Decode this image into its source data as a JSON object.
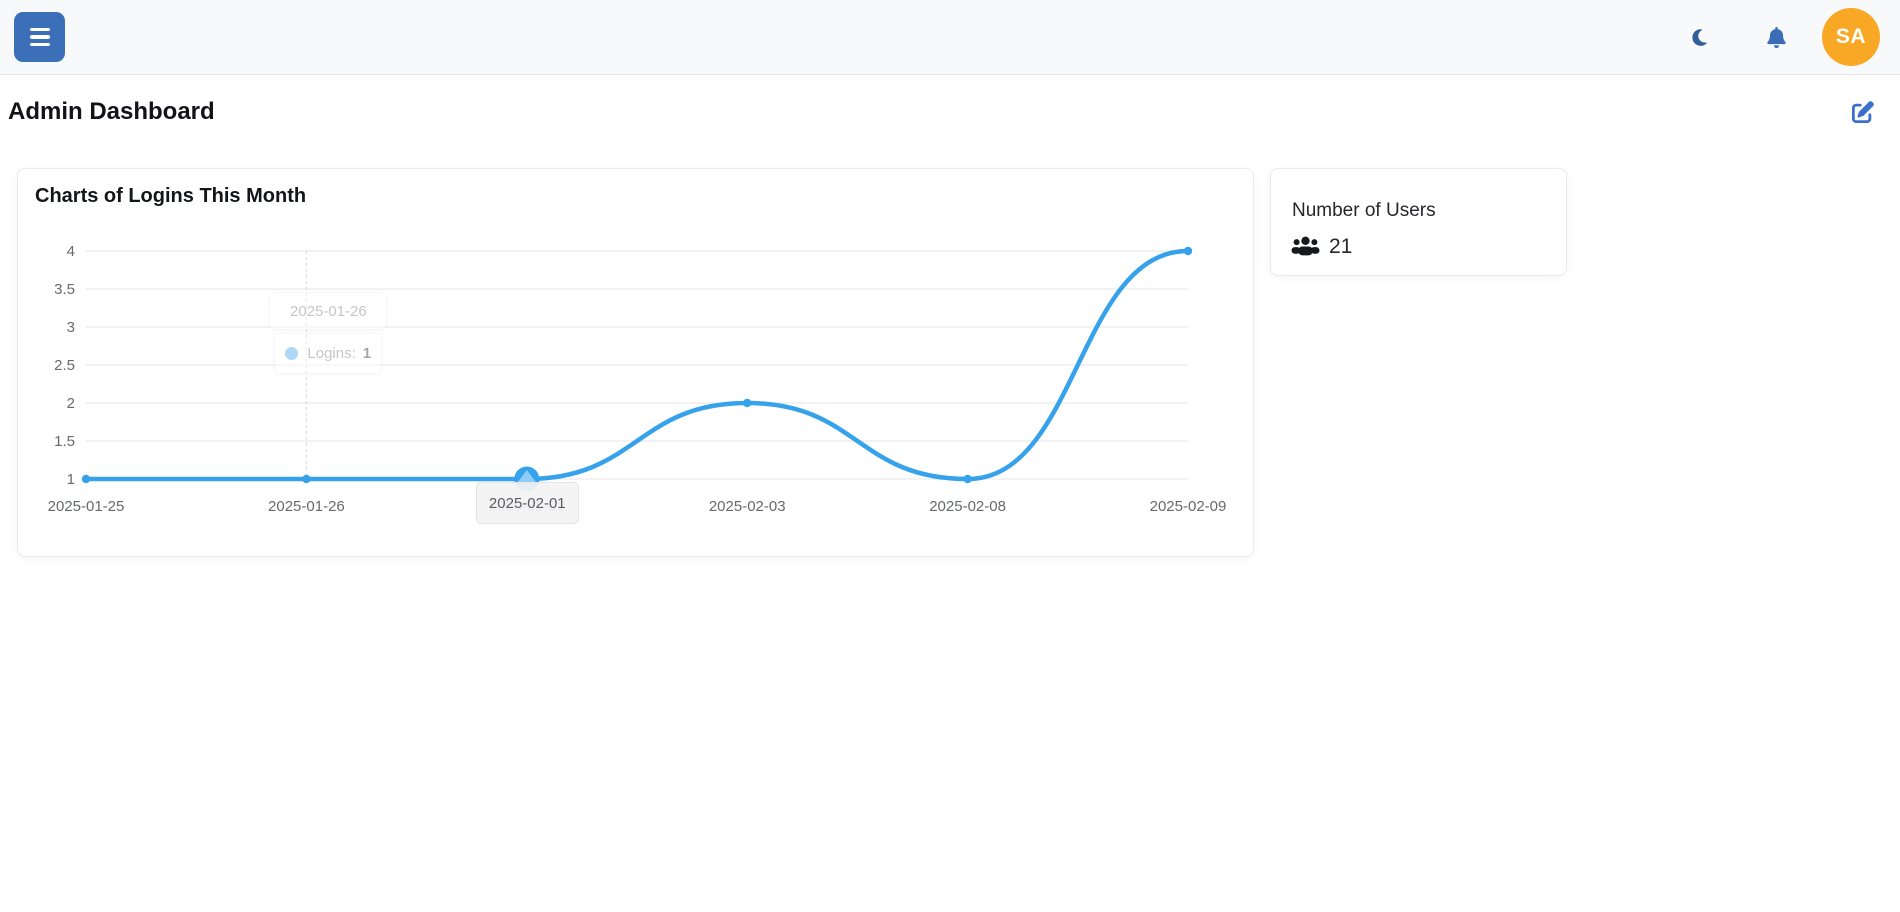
{
  "colors": {
    "primary": "#3b70b8",
    "icon_blue": "#3b71ca",
    "moon": "#335f99",
    "bell": "#3a6db5",
    "avatar_bg": "#f9a826",
    "chart_line": "#36A2EB"
  },
  "icons": {
    "menu": "hamburger",
    "theme_toggle": "moon",
    "notifications": "bell",
    "edit": "pen-to-square",
    "users": "users-group"
  },
  "navbar": {
    "avatar_initials": "SA"
  },
  "page": {
    "title": "Admin Dashboard"
  },
  "users_card": {
    "title": "Number of Users",
    "count": "21"
  },
  "chart_data": {
    "type": "line",
    "title": "Charts of Logins This Month",
    "x": [
      "2025-01-25",
      "2025-01-26",
      "2025-02-01",
      "2025-02-03",
      "2025-02-08",
      "2025-02-09"
    ],
    "series": [
      {
        "name": "Logins",
        "values": [
          1,
          1,
          1,
          2,
          1,
          4
        ]
      }
    ],
    "ylim": [
      1,
      4
    ],
    "yticks": [
      1,
      1.5,
      2,
      2.5,
      3,
      3.5,
      4
    ],
    "grid": true,
    "legend_position": "none",
    "line_color": "#36A2EB",
    "point_color": "#36A2EB",
    "hovered_point": {
      "x": "2025-02-01",
      "index": 2,
      "value": 1
    },
    "tooltip": {
      "date": "2025-01-26",
      "index": 1,
      "label": "Logins:",
      "value": "1"
    },
    "axis_hover_label": "2025-02-01"
  }
}
